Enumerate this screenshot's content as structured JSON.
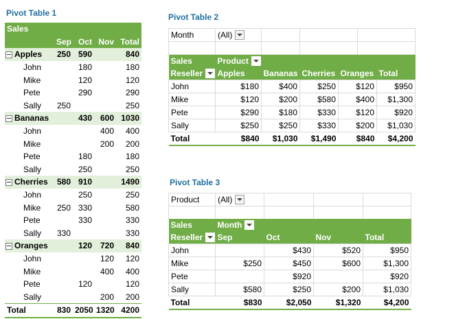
{
  "pt1": {
    "title": "Pivot Table 1",
    "header_label": "Sales",
    "cols": [
      "Sep",
      "Oct",
      "Nov",
      "Total"
    ],
    "groups": [
      {
        "name": "Apples",
        "vals": [
          "250",
          "590",
          "",
          "840"
        ],
        "rows": [
          {
            "name": "John",
            "vals": [
              "",
              "180",
              "",
              "180"
            ]
          },
          {
            "name": "Mike",
            "vals": [
              "",
              "120",
              "",
              "120"
            ]
          },
          {
            "name": "Pete",
            "vals": [
              "",
              "290",
              "",
              "290"
            ]
          },
          {
            "name": "Sally",
            "vals": [
              "250",
              "",
              "",
              "250"
            ]
          }
        ]
      },
      {
        "name": "Bananas",
        "vals": [
          "",
          "430",
          "600",
          "1030"
        ],
        "rows": [
          {
            "name": "John",
            "vals": [
              "",
              "",
              "400",
              "400"
            ]
          },
          {
            "name": "Mike",
            "vals": [
              "",
              "",
              "200",
              "200"
            ]
          },
          {
            "name": "Pete",
            "vals": [
              "",
              "180",
              "",
              "180"
            ]
          },
          {
            "name": "Sally",
            "vals": [
              "",
              "250",
              "",
              "250"
            ]
          }
        ]
      },
      {
        "name": "Cherries",
        "vals": [
          "580",
          "910",
          "",
          "1490"
        ],
        "rows": [
          {
            "name": "John",
            "vals": [
              "",
              "250",
              "",
              "250"
            ]
          },
          {
            "name": "Mike",
            "vals": [
              "250",
              "330",
              "",
              "580"
            ]
          },
          {
            "name": "Pete",
            "vals": [
              "",
              "330",
              "",
              "330"
            ]
          },
          {
            "name": "Sally",
            "vals": [
              "330",
              "",
              "",
              "330"
            ]
          }
        ]
      },
      {
        "name": "Oranges",
        "vals": [
          "",
          "120",
          "720",
          "840"
        ],
        "rows": [
          {
            "name": "John",
            "vals": [
              "",
              "",
              "120",
              "120"
            ]
          },
          {
            "name": "Mike",
            "vals": [
              "",
              "",
              "400",
              "400"
            ]
          },
          {
            "name": "Pete",
            "vals": [
              "",
              "120",
              "",
              "120"
            ]
          },
          {
            "name": "Sally",
            "vals": [
              "",
              "",
              "200",
              "200"
            ]
          }
        ]
      }
    ],
    "total": {
      "name": "Total",
      "vals": [
        "830",
        "2050",
        "1320",
        "4200"
      ]
    }
  },
  "pt2": {
    "title": "Pivot Table 2",
    "filter_label": "Month",
    "filter_value": "(All)",
    "sales_label": "Sales",
    "col_field": "Product",
    "row_field": "Reseller",
    "cols": [
      "Apples",
      "Bananas",
      "Cherries",
      "Oranges",
      "Total"
    ],
    "rows": [
      {
        "name": "John",
        "vals": [
          "$180",
          "$400",
          "$250",
          "$120",
          "$950"
        ]
      },
      {
        "name": "Mike",
        "vals": [
          "$120",
          "$200",
          "$580",
          "$400",
          "$1,300"
        ]
      },
      {
        "name": "Pete",
        "vals": [
          "$290",
          "$180",
          "$330",
          "$120",
          "$920"
        ]
      },
      {
        "name": "Sally",
        "vals": [
          "$250",
          "$250",
          "$330",
          "$200",
          "$1,030"
        ]
      }
    ],
    "total": {
      "name": "Total",
      "vals": [
        "$840",
        "$1,030",
        "$1,490",
        "$840",
        "$4,200"
      ]
    }
  },
  "pt3": {
    "title": "Pivot Table 3",
    "filter_label": "Product",
    "filter_value": "(All)",
    "sales_label": "Sales",
    "col_field": "Month",
    "row_field": "Reseller",
    "cols": [
      "Sep",
      "Oct",
      "Nov",
      "Total"
    ],
    "rows": [
      {
        "name": "John",
        "vals": [
          "",
          "$430",
          "$520",
          "$950"
        ]
      },
      {
        "name": "Mike",
        "vals": [
          "$250",
          "$450",
          "$600",
          "$1,300"
        ]
      },
      {
        "name": "Pete",
        "vals": [
          "",
          "$920",
          "",
          "$920"
        ]
      },
      {
        "name": "Sally",
        "vals": [
          "$580",
          "$250",
          "$200",
          "$1,030"
        ]
      }
    ],
    "total": {
      "name": "Total",
      "vals": [
        "$830",
        "$2,050",
        "$1,320",
        "$4,200"
      ]
    }
  },
  "colors": {
    "header_green": "#70ad47",
    "group_band": "#e2efda",
    "title_blue": "#1f6f9f"
  },
  "icons": {
    "collapse": "minus-box-icon",
    "filter": "dropdown-arrow-icon"
  }
}
